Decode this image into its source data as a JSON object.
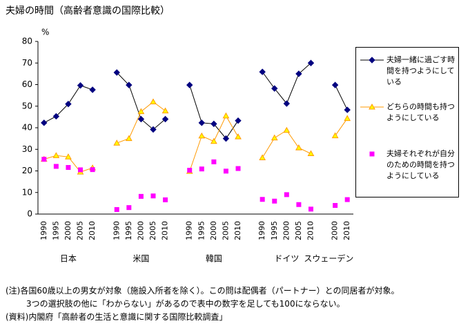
{
  "chart_data": {
    "type": "line",
    "title": "夫婦の時間（高齢者意識の国際比較）",
    "y_unit": "%",
    "categories": [
      "1990",
      "1995",
      "2000",
      "2005",
      "2010",
      null,
      "1990",
      "1995",
      "2000",
      "2005",
      "2010",
      null,
      "1990",
      "1995",
      "2000",
      "2005",
      "2010",
      null,
      "1990",
      "1995",
      "2000",
      "2005",
      "2010",
      null,
      "2000",
      "2010"
    ],
    "groups": [
      "日本",
      "米国",
      "韓国",
      "ドイツ",
      "スウェーデン"
    ],
    "ylim": [
      0,
      80
    ],
    "yticks": [
      0,
      10,
      20,
      30,
      40,
      50,
      60,
      70,
      80
    ],
    "grid": false,
    "series": [
      {
        "name": "夫婦一緒に過ごす時間を持つようにしている",
        "color": "#000000",
        "marker_color": "#000080",
        "marker": "diamond",
        "line": true,
        "values": [
          42.3,
          45.3,
          51,
          59.6,
          57.6,
          null,
          65.6,
          59.8,
          44,
          39.2,
          44,
          null,
          59.8,
          42.3,
          41.8,
          35,
          43.3,
          null,
          65.9,
          58.2,
          51.2,
          65,
          70,
          null,
          59.8,
          48.3
        ]
      },
      {
        "name": "どちらの時間も持つようにしている",
        "color": "#FF9900",
        "marker_color": "#FFFF00",
        "marker": "triangle",
        "line": true,
        "values": [
          25.4,
          27.1,
          26.5,
          19.5,
          21.4,
          null,
          32.9,
          35,
          47.5,
          52,
          47.8,
          null,
          19.8,
          36.2,
          33.7,
          45.5,
          35.8,
          null,
          26.1,
          35.3,
          38.8,
          30.7,
          28,
          null,
          36.3,
          44.3
        ]
      },
      {
        "name": "夫婦それぞれが自分のための時間を持つようにしている",
        "color": "#FF00FF",
        "marker_color": "#FF00FF",
        "marker": "square",
        "line": false,
        "values": [
          25.4,
          22.1,
          21.6,
          20.5,
          20.6,
          null,
          2.1,
          3,
          8.2,
          8.4,
          6.6,
          null,
          20.3,
          20.9,
          24.2,
          19.9,
          21.1,
          null,
          6.8,
          6,
          9,
          4.4,
          2.3,
          null,
          4,
          6.7
        ]
      }
    ],
    "notes": [
      "(注)各国60歳以上の男女が対象（施設入所者を除く）。この問は配偶者（パートナー）との同居者が対象。",
      "3つの選択肢の他に「わからない」があるので表中の数字を足しても100にならない。",
      "(資料)内閣府「高齢者の生活と意識に関する国際比較調査」"
    ]
  }
}
